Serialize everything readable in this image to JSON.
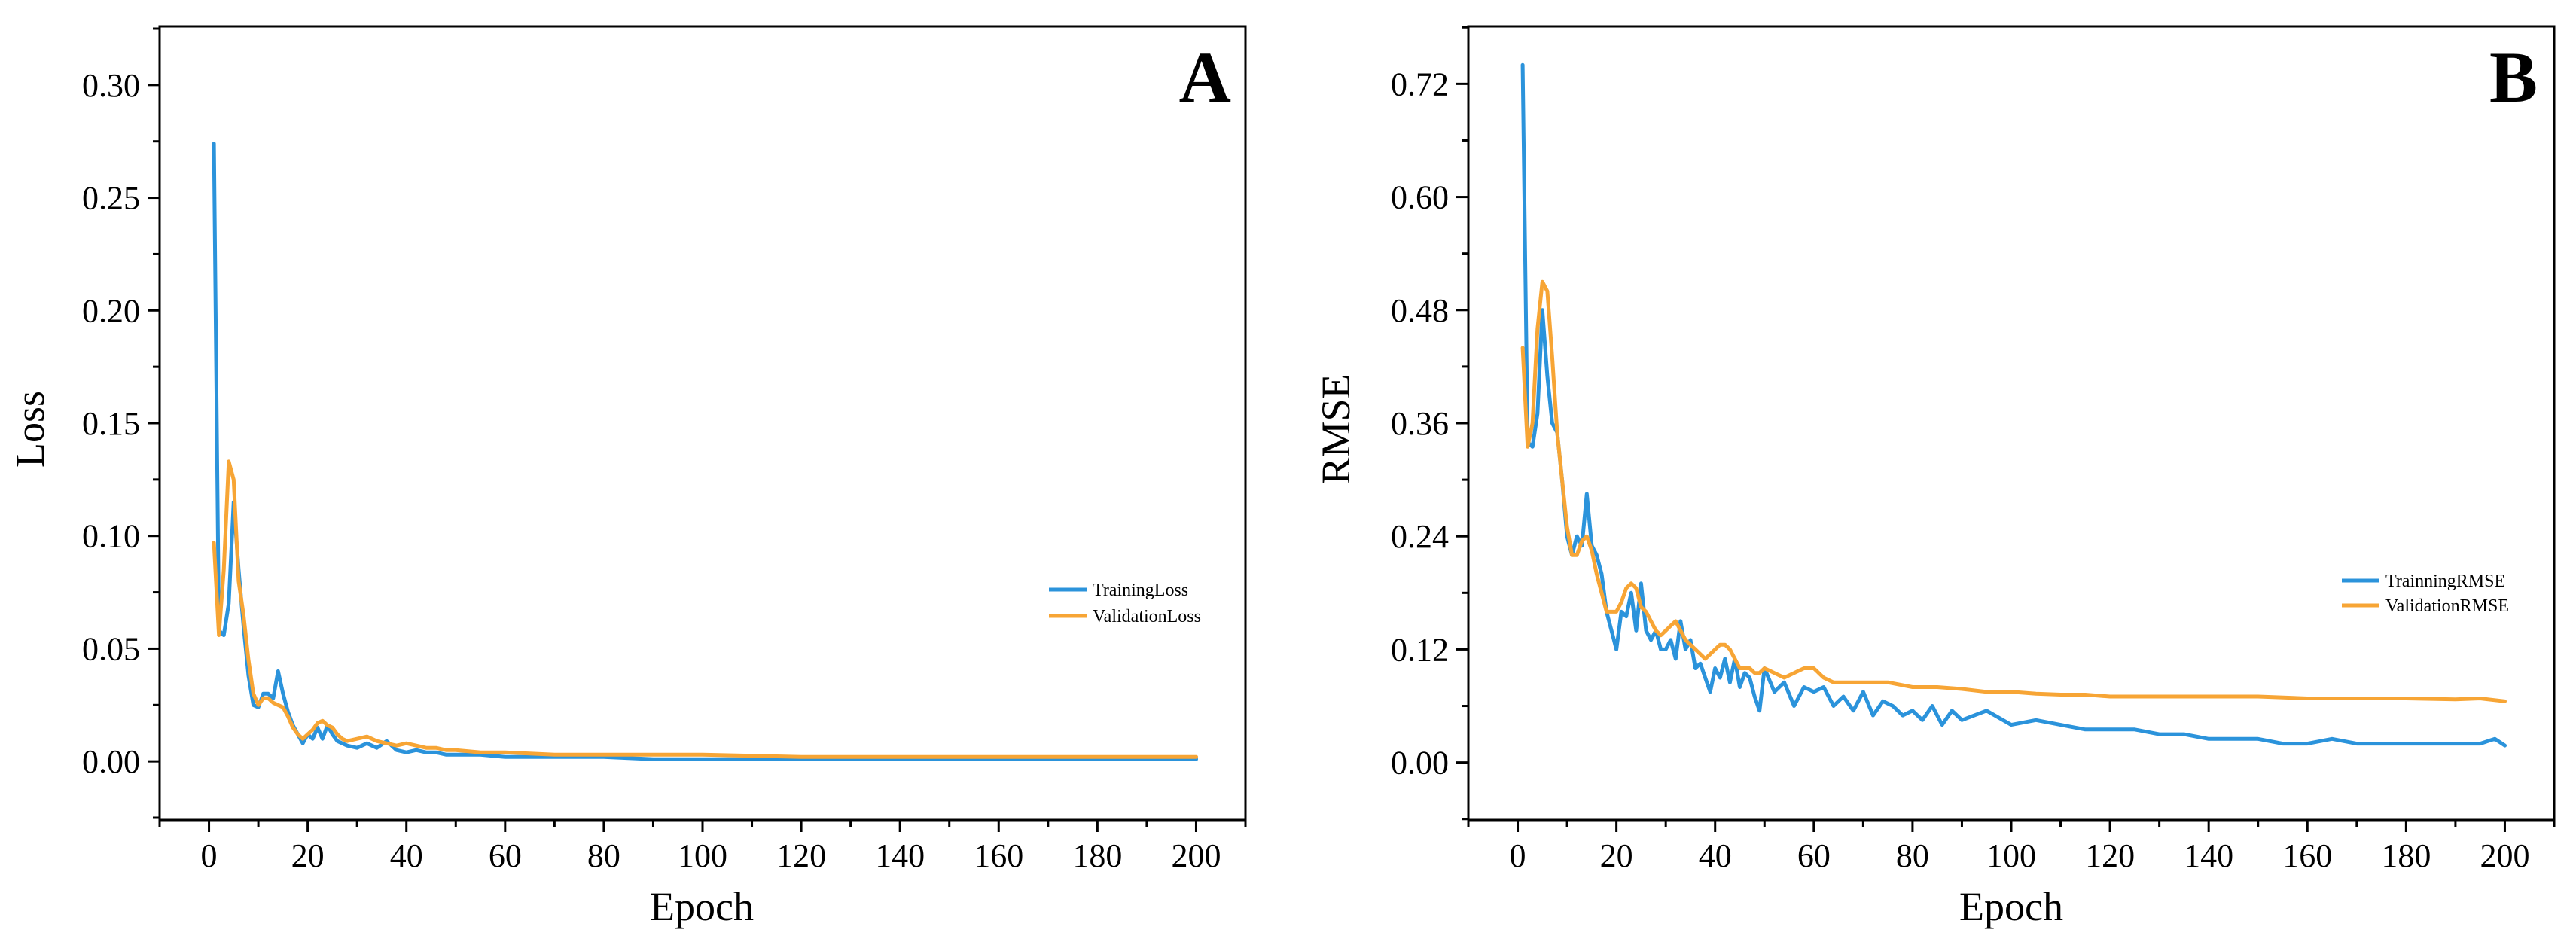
{
  "figure": {
    "background": "#ffffff"
  },
  "chart_data": [
    {
      "type": "line",
      "panel_label": "A",
      "title": "",
      "xlabel": "Epoch",
      "ylabel": "Loss",
      "xlim": [
        -10,
        210
      ],
      "ylim": [
        -0.026,
        0.326
      ],
      "xticks": [
        0,
        20,
        40,
        60,
        80,
        100,
        120,
        140,
        160,
        180,
        200
      ],
      "xtick_labels": [
        "0",
        "20",
        "40",
        "60",
        "80",
        "100",
        "120",
        "140",
        "160",
        "180",
        "200"
      ],
      "yticks": [
        0.0,
        0.05,
        0.1,
        0.15,
        0.2,
        0.25,
        0.3
      ],
      "ytick_labels": [
        "0.00",
        "0.05",
        "0.10",
        "0.15",
        "0.20",
        "0.25",
        "0.30"
      ],
      "legend_position": "center-right",
      "series": [
        {
          "name": "TrainingLoss",
          "color": "#2B93DB",
          "x": [
            1,
            2,
            3,
            4,
            5,
            6,
            7,
            8,
            9,
            10,
            11,
            12,
            13,
            14,
            15,
            16,
            17,
            18,
            19,
            20,
            21,
            22,
            23,
            24,
            25,
            26,
            27,
            28,
            30,
            32,
            34,
            36,
            38,
            40,
            42,
            44,
            46,
            48,
            50,
            55,
            60,
            70,
            80,
            90,
            100,
            120,
            140,
            160,
            180,
            200
          ],
          "y": [
            0.274,
            0.058,
            0.056,
            0.07,
            0.115,
            0.085,
            0.06,
            0.038,
            0.025,
            0.024,
            0.03,
            0.03,
            0.028,
            0.04,
            0.03,
            0.022,
            0.016,
            0.012,
            0.008,
            0.012,
            0.01,
            0.015,
            0.01,
            0.016,
            0.012,
            0.009,
            0.008,
            0.007,
            0.006,
            0.008,
            0.006,
            0.009,
            0.005,
            0.004,
            0.005,
            0.004,
            0.004,
            0.003,
            0.003,
            0.003,
            0.002,
            0.002,
            0.002,
            0.001,
            0.001,
            0.001,
            0.001,
            0.001,
            0.001,
            0.001
          ]
        },
        {
          "name": "ValidationLoss",
          "color": "#F7A535",
          "x": [
            1,
            2,
            3,
            4,
            5,
            6,
            7,
            8,
            9,
            10,
            11,
            12,
            13,
            14,
            15,
            16,
            17,
            18,
            19,
            20,
            21,
            22,
            23,
            24,
            25,
            26,
            27,
            28,
            30,
            32,
            34,
            36,
            38,
            40,
            42,
            44,
            46,
            48,
            50,
            55,
            60,
            70,
            80,
            90,
            100,
            120,
            140,
            160,
            180,
            200
          ],
          "y": [
            0.097,
            0.056,
            0.085,
            0.133,
            0.125,
            0.08,
            0.065,
            0.045,
            0.03,
            0.025,
            0.028,
            0.028,
            0.026,
            0.025,
            0.024,
            0.02,
            0.015,
            0.012,
            0.01,
            0.012,
            0.014,
            0.017,
            0.018,
            0.016,
            0.015,
            0.012,
            0.01,
            0.009,
            0.01,
            0.011,
            0.009,
            0.008,
            0.007,
            0.008,
            0.007,
            0.006,
            0.006,
            0.005,
            0.005,
            0.004,
            0.004,
            0.003,
            0.003,
            0.003,
            0.003,
            0.002,
            0.002,
            0.002,
            0.002,
            0.002
          ]
        }
      ]
    },
    {
      "type": "line",
      "panel_label": "B",
      "title": "",
      "xlabel": "Epoch",
      "ylabel": "RMSE",
      "xlim": [
        -10,
        210
      ],
      "ylim": [
        -0.061,
        0.781
      ],
      "xticks": [
        0,
        20,
        40,
        60,
        80,
        100,
        120,
        140,
        160,
        180,
        200
      ],
      "xtick_labels": [
        "0",
        "20",
        "40",
        "60",
        "80",
        "100",
        "120",
        "140",
        "160",
        "180",
        "200"
      ],
      "yticks": [
        0.0,
        0.12,
        0.24,
        0.36,
        0.48,
        0.6,
        0.72
      ],
      "ytick_labels": [
        "0.00",
        "0.12",
        "0.24",
        "0.36",
        "0.48",
        "0.60",
        "0.72"
      ],
      "legend_position": "center-right",
      "series": [
        {
          "name": "TrainningRMSE",
          "color": "#2B93DB",
          "x": [
            1,
            2,
            3,
            4,
            5,
            6,
            7,
            8,
            9,
            10,
            11,
            12,
            13,
            14,
            15,
            16,
            17,
            18,
            19,
            20,
            21,
            22,
            23,
            24,
            25,
            26,
            27,
            28,
            29,
            30,
            31,
            32,
            33,
            34,
            35,
            36,
            37,
            38,
            39,
            40,
            41,
            42,
            43,
            44,
            45,
            46,
            47,
            48,
            49,
            50,
            52,
            54,
            56,
            58,
            60,
            62,
            64,
            66,
            68,
            70,
            72,
            74,
            76,
            78,
            80,
            82,
            84,
            86,
            88,
            90,
            95,
            100,
            105,
            110,
            115,
            120,
            125,
            130,
            135,
            140,
            145,
            150,
            155,
            160,
            165,
            170,
            175,
            180,
            185,
            190,
            195,
            198,
            200
          ],
          "y": [
            0.74,
            0.34,
            0.335,
            0.37,
            0.48,
            0.41,
            0.36,
            0.35,
            0.3,
            0.24,
            0.22,
            0.24,
            0.23,
            0.285,
            0.23,
            0.22,
            0.2,
            0.16,
            0.14,
            0.12,
            0.16,
            0.155,
            0.18,
            0.14,
            0.19,
            0.14,
            0.13,
            0.14,
            0.12,
            0.12,
            0.13,
            0.11,
            0.15,
            0.12,
            0.13,
            0.1,
            0.105,
            0.09,
            0.075,
            0.1,
            0.09,
            0.11,
            0.085,
            0.11,
            0.08,
            0.095,
            0.09,
            0.07,
            0.055,
            0.1,
            0.075,
            0.085,
            0.06,
            0.08,
            0.075,
            0.08,
            0.06,
            0.07,
            0.055,
            0.075,
            0.05,
            0.065,
            0.06,
            0.05,
            0.055,
            0.045,
            0.06,
            0.04,
            0.055,
            0.045,
            0.055,
            0.04,
            0.045,
            0.04,
            0.035,
            0.035,
            0.035,
            0.03,
            0.03,
            0.025,
            0.025,
            0.025,
            0.02,
            0.02,
            0.025,
            0.02,
            0.02,
            0.02,
            0.02,
            0.02,
            0.02,
            0.025,
            0.018
          ]
        },
        {
          "name": "ValidationRMSE",
          "color": "#F7A535",
          "x": [
            1,
            2,
            3,
            4,
            5,
            6,
            7,
            8,
            9,
            10,
            11,
            12,
            13,
            14,
            15,
            16,
            17,
            18,
            19,
            20,
            21,
            22,
            23,
            24,
            25,
            26,
            27,
            28,
            29,
            30,
            31,
            32,
            33,
            34,
            35,
            36,
            37,
            38,
            39,
            40,
            41,
            42,
            43,
            44,
            45,
            46,
            47,
            48,
            49,
            50,
            52,
            54,
            56,
            58,
            60,
            62,
            64,
            66,
            68,
            70,
            75,
            80,
            85,
            90,
            95,
            100,
            105,
            110,
            115,
            120,
            130,
            140,
            150,
            160,
            170,
            180,
            190,
            195,
            200
          ],
          "y": [
            0.44,
            0.335,
            0.36,
            0.46,
            0.51,
            0.5,
            0.43,
            0.35,
            0.3,
            0.25,
            0.22,
            0.22,
            0.235,
            0.24,
            0.225,
            0.2,
            0.18,
            0.16,
            0.16,
            0.16,
            0.17,
            0.185,
            0.19,
            0.185,
            0.165,
            0.16,
            0.15,
            0.14,
            0.135,
            0.14,
            0.145,
            0.15,
            0.14,
            0.13,
            0.125,
            0.12,
            0.115,
            0.11,
            0.115,
            0.12,
            0.125,
            0.125,
            0.12,
            0.11,
            0.1,
            0.1,
            0.1,
            0.095,
            0.095,
            0.1,
            0.095,
            0.09,
            0.095,
            0.1,
            0.1,
            0.09,
            0.085,
            0.085,
            0.085,
            0.085,
            0.085,
            0.08,
            0.08,
            0.078,
            0.075,
            0.075,
            0.073,
            0.072,
            0.072,
            0.07,
            0.07,
            0.07,
            0.07,
            0.068,
            0.068,
            0.068,
            0.067,
            0.068,
            0.065
          ]
        }
      ]
    }
  ]
}
